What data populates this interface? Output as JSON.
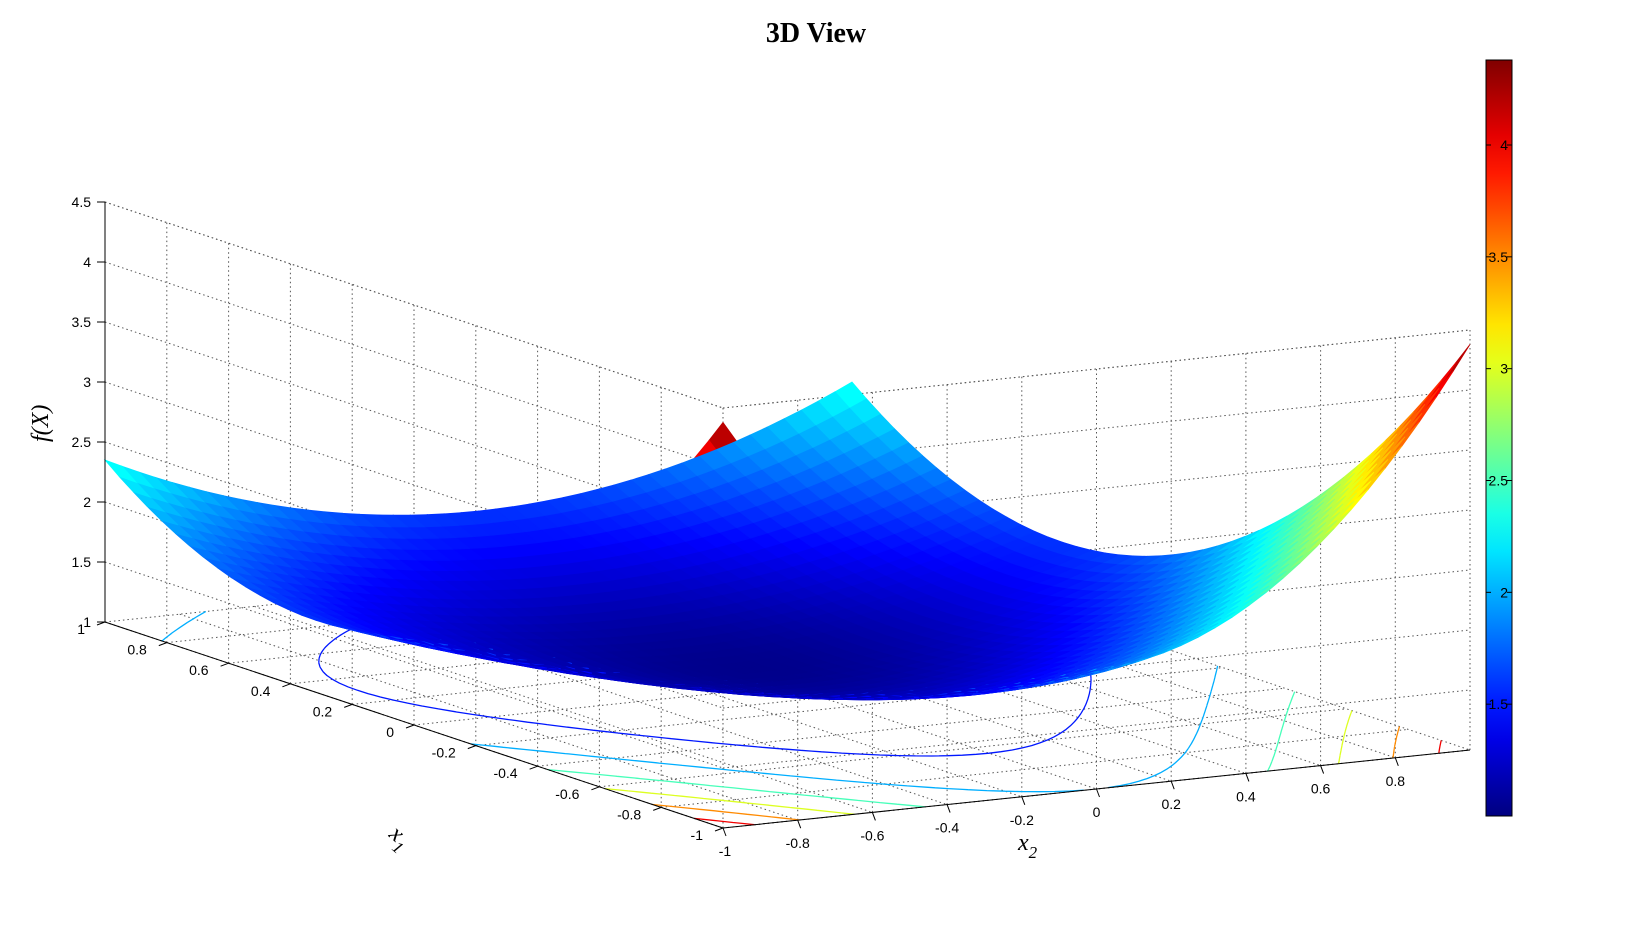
{
  "chart_data": {
    "type": "surface3d",
    "title": "3D View",
    "xlabel": "x",
    "xlabel_sub": "1",
    "ylabel": "x",
    "ylabel_sub": "2",
    "zlabel": "f(X)",
    "x_range": [
      -1,
      1
    ],
    "y_range": [
      -1,
      1
    ],
    "z_range": [
      1,
      4.5
    ],
    "x_ticks": [
      "-1",
      "-0.8",
      "-0.6",
      "-0.4",
      "-0.2",
      "0",
      "0.2",
      "0.4",
      "0.6",
      "0.8",
      "1"
    ],
    "y_ticks": [
      "-1",
      "-0.8",
      "-0.6",
      "-0.4",
      "-0.2",
      "0",
      "0.2",
      "0.4",
      "0.6",
      "0.8"
    ],
    "z_ticks": [
      "1",
      "1.5",
      "2",
      "2.5",
      "3",
      "3.5",
      "4",
      "4.5"
    ],
    "colorbar_ticks": [
      "1.5",
      "2",
      "2.5",
      "3",
      "3.5",
      "4"
    ],
    "colorbar_range": [
      1.0,
      4.38
    ],
    "colormap": "jet",
    "grid": true,
    "contour_projection": true,
    "surface_samples": {
      "x1": [
        -1,
        0,
        1
      ],
      "x2": [
        -1,
        0,
        1
      ],
      "f": [
        [
          4.38,
          2.0,
          4.38
        ],
        [
          1.76,
          1.05,
          1.76
        ],
        [
          2.35,
          1.6,
          2.35
        ]
      ]
    },
    "contour_levels": [
      1.5,
      2.0,
      2.5,
      3.0,
      3.5,
      4.0
    ]
  }
}
